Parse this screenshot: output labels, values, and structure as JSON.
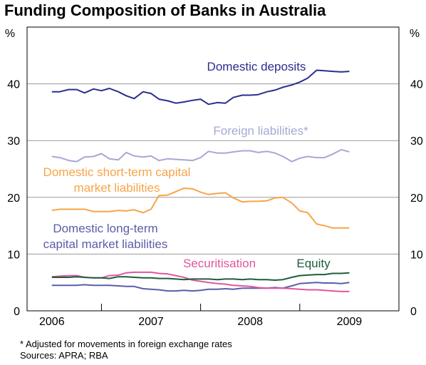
{
  "chart_data": {
    "type": "line",
    "title": "Funding Composition of Banks in Australia",
    "ylabel_left": "%",
    "ylabel_right": "%",
    "ylim": [
      0,
      50
    ],
    "yticks": [
      0,
      10,
      20,
      30,
      40
    ],
    "xlim": [
      2005.75,
      2009.5
    ],
    "xticks": [
      "2006",
      "2007",
      "2008",
      "2009"
    ],
    "grid": "horizontal",
    "x": [
      2006.0,
      2006.08,
      2006.17,
      2006.25,
      2006.33,
      2006.42,
      2006.5,
      2006.58,
      2006.67,
      2006.75,
      2006.83,
      2006.92,
      2007.0,
      2007.08,
      2007.17,
      2007.25,
      2007.33,
      2007.42,
      2007.5,
      2007.58,
      2007.67,
      2007.75,
      2007.83,
      2007.92,
      2008.0,
      2008.08,
      2008.17,
      2008.25,
      2008.33,
      2008.42,
      2008.5,
      2008.58,
      2008.67,
      2008.75,
      2008.83,
      2008.92,
      2009.0
    ],
    "series": [
      {
        "name": "Domestic deposits",
        "color": "#2b2e8f",
        "values": [
          38.6,
          38.6,
          39.0,
          39.0,
          38.4,
          39.1,
          38.8,
          39.2,
          38.6,
          37.9,
          37.4,
          38.6,
          38.3,
          37.3,
          37.0,
          36.6,
          36.8,
          37.1,
          37.3,
          36.4,
          36.7,
          36.6,
          37.6,
          38.0,
          38.0,
          38.1,
          38.6,
          38.9,
          39.4,
          39.8,
          40.3,
          41.0,
          42.4,
          42.3,
          42.2,
          42.1,
          42.2
        ]
      },
      {
        "name": "Foreign liabilities*",
        "color": "#a6a8d6",
        "values": [
          27.2,
          27.0,
          26.5,
          26.3,
          27.1,
          27.2,
          27.7,
          26.8,
          26.6,
          27.9,
          27.3,
          27.1,
          27.3,
          26.5,
          26.8,
          26.7,
          26.6,
          26.5,
          27.0,
          28.1,
          27.8,
          27.8,
          28.0,
          28.2,
          28.2,
          27.9,
          28.1,
          27.8,
          27.2,
          26.3,
          26.9,
          27.2,
          27.0,
          27.0,
          27.6,
          28.4,
          28.0
        ]
      },
      {
        "name": "Domestic short-term capital market liabilities",
        "color": "#f6a54a",
        "values": [
          17.7,
          17.9,
          17.9,
          17.9,
          17.9,
          17.5,
          17.5,
          17.5,
          17.7,
          17.6,
          17.8,
          17.3,
          17.9,
          20.3,
          20.4,
          21.0,
          21.6,
          21.5,
          20.9,
          20.5,
          20.7,
          20.8,
          19.9,
          19.2,
          19.3,
          19.3,
          19.4,
          19.9,
          20.0,
          19.0,
          17.6,
          17.3,
          15.3,
          15.0,
          14.6,
          14.6,
          14.6
        ]
      },
      {
        "name": "Domestic long-term capital market liabilities",
        "color": "#5a5ea8",
        "values": [
          4.5,
          4.5,
          4.5,
          4.5,
          4.6,
          4.5,
          4.5,
          4.5,
          4.4,
          4.3,
          4.3,
          3.9,
          3.8,
          3.7,
          3.5,
          3.5,
          3.6,
          3.5,
          3.6,
          3.8,
          3.8,
          3.9,
          3.8,
          4.0,
          4.0,
          4.0,
          4.0,
          4.1,
          4.0,
          4.4,
          4.8,
          4.9,
          5.0,
          4.9,
          4.9,
          4.8,
          5.0
        ]
      },
      {
        "name": "Securitisation",
        "color": "#e0579f",
        "values": [
          6.0,
          6.1,
          6.2,
          6.2,
          5.9,
          5.8,
          5.8,
          6.2,
          6.3,
          6.7,
          6.8,
          6.8,
          6.8,
          6.6,
          6.5,
          6.2,
          5.9,
          5.4,
          5.2,
          5.0,
          4.8,
          4.7,
          4.5,
          4.4,
          4.3,
          4.1,
          4.0,
          4.0,
          4.0,
          3.9,
          3.8,
          3.7,
          3.7,
          3.6,
          3.5,
          3.4,
          3.4
        ]
      },
      {
        "name": "Equity",
        "color": "#1d5e3c",
        "values": [
          5.9,
          5.9,
          5.9,
          6.0,
          5.9,
          5.8,
          5.8,
          5.7,
          6.0,
          6.0,
          5.9,
          5.8,
          5.8,
          5.7,
          5.7,
          5.6,
          5.5,
          5.6,
          5.6,
          5.6,
          5.5,
          5.6,
          5.6,
          5.5,
          5.6,
          5.5,
          5.5,
          5.4,
          5.5,
          5.9,
          6.2,
          6.3,
          6.4,
          6.4,
          6.6,
          6.6,
          6.7
        ]
      }
    ],
    "annotations": [
      {
        "text": "Domestic deposits",
        "color": "#2b2e8f"
      },
      {
        "text": "Foreign liabilities*",
        "color": "#a6a8d6"
      },
      {
        "text": "Domestic short-term capital",
        "color": "#f6a54a"
      },
      {
        "text": "market liabilities",
        "color": "#f6a54a"
      },
      {
        "text": "Domestic long-term",
        "color": "#5a5ea8"
      },
      {
        "text": "capital market liabilities",
        "color": "#5a5ea8"
      },
      {
        "text": "Securitisation",
        "color": "#e0579f"
      },
      {
        "text": "Equity",
        "color": "#1d5e3c"
      }
    ]
  },
  "footnotes": {
    "note": "* Adjusted for movements in foreign exchange rates",
    "sources": "Sources: APRA; RBA"
  }
}
